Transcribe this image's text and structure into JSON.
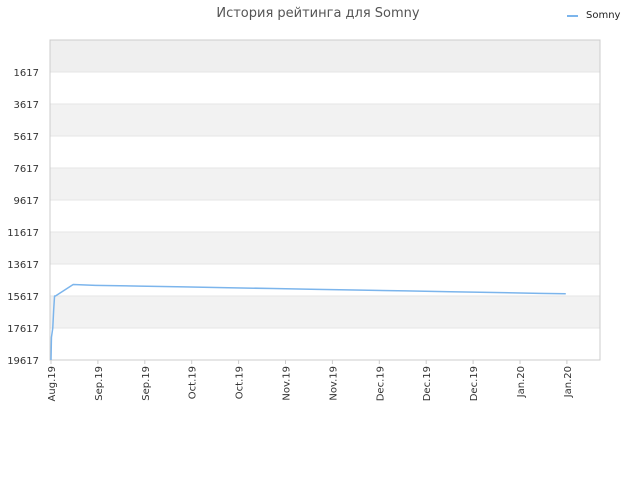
{
  "chart_data": {
    "type": "line",
    "title": "История рейтинга для Somny",
    "xlabel": "",
    "ylabel": "",
    "y_reversed": true,
    "ylim": [
      -383,
      19617
    ],
    "yticks": [
      1617,
      3617,
      5617,
      7617,
      9617,
      11617,
      13617,
      15617,
      17617,
      19617
    ],
    "xticks": [
      "Aug.19",
      "Sep.19",
      "Sep.19",
      "Oct.19",
      "Oct.19",
      "Nov.19",
      "Nov.19",
      "Dec.19",
      "Dec.19",
      "Dec.19",
      "Jan.20",
      "Jan.20"
    ],
    "grid": true,
    "legend": {
      "placement": "top-right"
    },
    "series": [
      {
        "name": "Somny",
        "color": "#7cb5ec",
        "x": [
          0,
          0.1,
          0.4,
          0.6,
          0.8,
          1.0,
          5.0,
          10.0,
          20.0,
          30.0,
          40.0,
          50.0,
          60.0,
          70.0,
          80.0,
          90.0,
          100.0,
          110.0,
          116.0
        ],
        "y": [
          19617,
          18200,
          17617,
          16500,
          15617,
          15617,
          14900,
          14950,
          15000,
          15050,
          15100,
          15150,
          15200,
          15250,
          15300,
          15350,
          15400,
          15450,
          15480
        ]
      }
    ]
  },
  "colors": {
    "band": "#f2f2f2",
    "top_band": "#efefef",
    "grid": "#e6e6e6",
    "axis": "#cccccc"
  }
}
